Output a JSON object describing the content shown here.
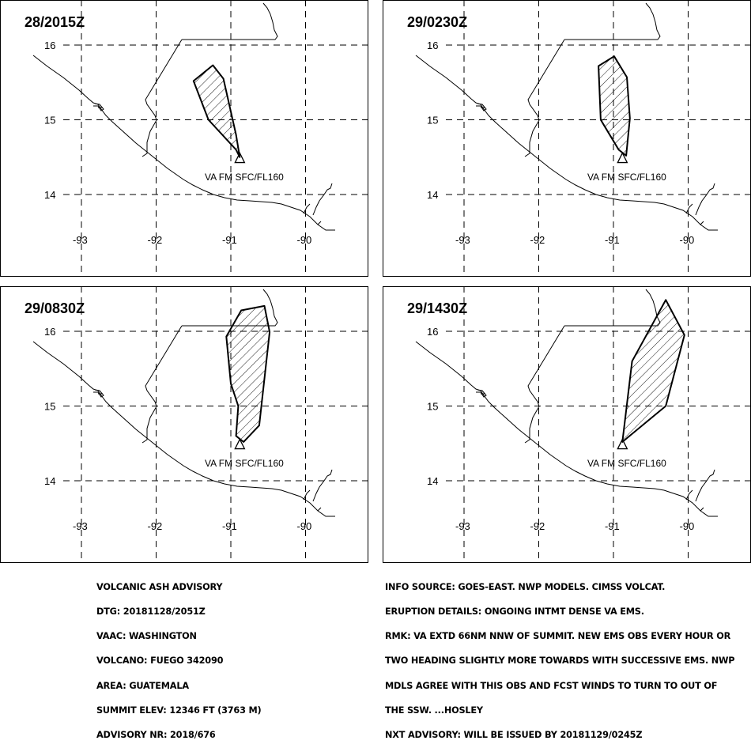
{
  "panels": [
    {
      "title": "28/2015Z",
      "va_label": "VA FM SFC/FL160",
      "polygon": [
        [
          -91.5,
          15.52
        ],
        [
          -91.24,
          15.73
        ],
        [
          -91.1,
          15.55
        ],
        [
          -90.93,
          14.8
        ],
        [
          -90.88,
          14.5
        ],
        [
          -90.93,
          14.6
        ],
        [
          -91.3,
          15.0
        ]
      ]
    },
    {
      "title": "29/0230Z",
      "va_label": "VA FM SFC/FL160",
      "polygon": [
        [
          -91.2,
          15.72
        ],
        [
          -90.99,
          15.85
        ],
        [
          -90.82,
          15.57
        ],
        [
          -90.78,
          15.02
        ],
        [
          -90.83,
          14.52
        ],
        [
          -90.93,
          14.6
        ],
        [
          -91.17,
          15.0
        ]
      ]
    },
    {
      "title": "29/0830Z",
      "va_label": "VA FM SFC/FL160",
      "polygon": [
        [
          -91.06,
          15.93
        ],
        [
          -90.86,
          16.28
        ],
        [
          -90.55,
          16.34
        ],
        [
          -90.48,
          15.99
        ],
        [
          -90.62,
          14.74
        ],
        [
          -90.83,
          14.52
        ],
        [
          -90.93,
          14.6
        ],
        [
          -90.9,
          15.0
        ],
        [
          -91.0,
          15.3
        ]
      ]
    },
    {
      "title": "29/1430Z",
      "va_label": "VA FM SFC/FL160",
      "polygon": [
        [
          -90.88,
          14.52
        ],
        [
          -90.75,
          15.6
        ],
        [
          -90.3,
          16.42
        ],
        [
          -90.05,
          15.95
        ],
        [
          -90.3,
          15.0
        ]
      ]
    }
  ],
  "axes": {
    "lon_ticks": [
      -93,
      -92,
      -91,
      -90
    ],
    "lat_ticks": [
      14,
      15,
      16
    ]
  },
  "volcano": {
    "lon": -90.88,
    "lat": 14.47
  },
  "map_colors": {
    "lines": "#000000",
    "background": "#ffffff"
  },
  "info_left": [
    "VOLCANIC ASH ADVISORY",
    "DTG: 20181128/2051Z",
    "VAAC: WASHINGTON",
    "VOLCANO: FUEGO 342090",
    "AREA: GUATEMALA",
    "SUMMIT ELEV: 12346 FT (3763 M)",
    "ADVISORY NR: 2018/676"
  ],
  "info_right": [
    "INFO SOURCE: GOES-EAST. NWP MODELS. CIMSS VOLCAT.",
    "ERUPTION DETAILS: ONGOING INTMT DENSE VA EMS.",
    "RMK: VA EXTD 66NM NNW OF SUMMIT. NEW EMS OBS EVERY HOUR OR",
    "TWO HEADING SLIGHTLY MORE TOWARDS WITH SUCCESSIVE EMS. NWP",
    "MDLS AGREE WITH THIS OBS AND FCST WINDS TO TURN TO OUT OF",
    "THE SSW. ...HOSLEY",
    "NXT ADVISORY: WILL BE ISSUED BY 20181129/0245Z"
  ]
}
